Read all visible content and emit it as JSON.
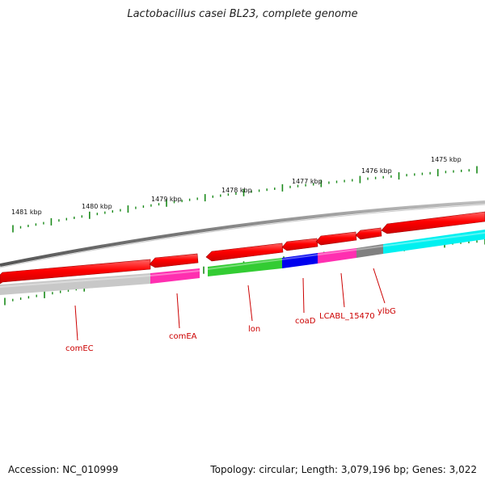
{
  "title": "Lactobacillus casei BL23, complete genome",
  "footer": {
    "accession": "Accession: NC_010999",
    "summary": "Topology: circular; Length: 3,079,196 bp; Genes: 3,022"
  },
  "scale": {
    "unit": "kbp",
    "ticks": [
      "1481 kbp",
      "1480 kbp",
      "1479 kbp",
      "1478 kbp",
      "1477 kbp",
      "1476 kbp",
      "1475 kbp"
    ]
  },
  "genes": [
    {
      "name": "comEC",
      "color": "#c8c8c8"
    },
    {
      "name": "comEA",
      "color": "#ff2fb0"
    },
    {
      "name": "lon",
      "color": "#33cc33"
    },
    {
      "name": "coaD",
      "color": "#0000ee"
    },
    {
      "name": "LCABL_15470",
      "color": "#ff2fb0"
    },
    {
      "name": "ylbG",
      "color": "#808080"
    },
    {
      "name": "",
      "color": "#00f0f0"
    }
  ],
  "colors": {
    "cds": "#ff0000",
    "tick": "#1a8a1a",
    "backbone": "#777777",
    "label": "#cc0000"
  }
}
